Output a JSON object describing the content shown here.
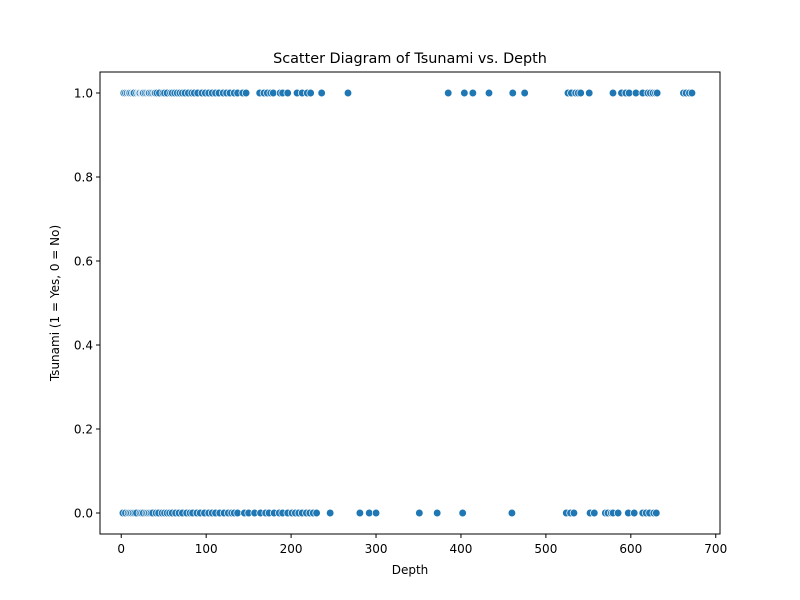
{
  "chart_data": {
    "type": "scatter",
    "title": "Scatter Diagram of Tsunami vs. Depth",
    "xlabel": "Depth",
    "ylabel": "Tsunami (1 = Yes, 0 = No)",
    "xlim": [
      -25,
      705
    ],
    "ylim": [
      -0.05,
      1.05
    ],
    "x_ticks": [
      0,
      100,
      200,
      300,
      400,
      500,
      600,
      700
    ],
    "y_ticks": [
      0.0,
      0.2,
      0.4,
      0.6,
      0.8,
      1.0
    ],
    "y_tick_labels": [
      "0.0",
      "0.2",
      "0.4",
      "0.6",
      "0.8",
      "1.0"
    ],
    "grid": false,
    "legend": "none",
    "marker_color": "#1f77b4",
    "marker_edge_color": "#ffffff",
    "series": [
      {
        "points": [
          [
            3,
            1
          ],
          [
            5,
            1
          ],
          [
            7,
            1
          ],
          [
            9,
            1
          ],
          [
            10,
            1
          ],
          [
            12,
            1
          ],
          [
            14,
            1
          ],
          [
            15,
            1
          ],
          [
            18,
            1
          ],
          [
            20,
            1
          ],
          [
            21,
            1
          ],
          [
            22,
            1
          ],
          [
            24,
            1
          ],
          [
            25,
            1
          ],
          [
            26,
            1
          ],
          [
            28,
            1
          ],
          [
            30,
            1
          ],
          [
            32,
            1
          ],
          [
            33,
            1
          ],
          [
            35,
            1
          ],
          [
            37,
            1
          ],
          [
            39,
            1
          ],
          [
            40,
            1
          ],
          [
            42,
            1
          ],
          [
            45,
            1
          ],
          [
            49,
            1
          ],
          [
            51,
            1
          ],
          [
            54,
            1
          ],
          [
            58,
            1
          ],
          [
            60,
            1
          ],
          [
            63,
            1
          ],
          [
            66,
            1
          ],
          [
            69,
            1
          ],
          [
            72,
            1
          ],
          [
            75,
            1
          ],
          [
            79,
            1
          ],
          [
            83,
            1
          ],
          [
            86,
            1
          ],
          [
            90,
            1
          ],
          [
            95,
            1
          ],
          [
            99,
            1
          ],
          [
            103,
            1
          ],
          [
            107,
            1
          ],
          [
            111,
            1
          ],
          [
            115,
            1
          ],
          [
            120,
            1
          ],
          [
            124,
            1
          ],
          [
            128,
            1
          ],
          [
            133,
            1
          ],
          [
            137,
            1
          ],
          [
            143,
            1
          ],
          [
            147,
            1
          ],
          [
            163,
            1
          ],
          [
            168,
            1
          ],
          [
            172,
            1
          ],
          [
            176,
            1
          ],
          [
            179,
            1
          ],
          [
            187,
            1
          ],
          [
            190,
            1
          ],
          [
            196,
            1
          ],
          [
            207,
            1
          ],
          [
            213,
            1
          ],
          [
            219,
            1
          ],
          [
            223,
            1
          ],
          [
            236,
            1
          ],
          [
            267,
            1
          ],
          [
            385,
            1
          ],
          [
            404,
            1
          ],
          [
            414,
            1
          ],
          [
            433,
            1
          ],
          [
            461,
            1
          ],
          [
            475,
            1
          ],
          [
            526,
            1
          ],
          [
            530,
            1
          ],
          [
            535,
            1
          ],
          [
            538,
            1
          ],
          [
            541,
            1
          ],
          [
            551,
            1
          ],
          [
            579,
            1
          ],
          [
            589,
            1
          ],
          [
            594,
            1
          ],
          [
            598,
            1
          ],
          [
            606,
            1
          ],
          [
            614,
            1
          ],
          [
            620,
            1
          ],
          [
            623,
            1
          ],
          [
            626,
            1
          ],
          [
            629,
            1
          ],
          [
            631,
            1
          ],
          [
            662,
            1
          ],
          [
            665,
            1
          ],
          [
            669,
            1
          ],
          [
            672,
            1
          ],
          [
            2,
            0
          ],
          [
            5,
            0
          ],
          [
            8,
            0
          ],
          [
            10,
            0
          ],
          [
            12,
            0
          ],
          [
            14,
            0
          ],
          [
            16,
            0
          ],
          [
            18,
            0
          ],
          [
            22,
            0
          ],
          [
            24,
            0
          ],
          [
            26,
            0
          ],
          [
            29,
            0
          ],
          [
            31,
            0
          ],
          [
            33,
            0
          ],
          [
            35,
            0
          ],
          [
            37,
            0
          ],
          [
            41,
            0
          ],
          [
            44,
            0
          ],
          [
            48,
            0
          ],
          [
            51,
            0
          ],
          [
            54,
            0
          ],
          [
            57,
            0
          ],
          [
            60,
            0
          ],
          [
            64,
            0
          ],
          [
            68,
            0
          ],
          [
            72,
            0
          ],
          [
            77,
            0
          ],
          [
            81,
            0
          ],
          [
            84,
            0
          ],
          [
            89,
            0
          ],
          [
            93,
            0
          ],
          [
            98,
            0
          ],
          [
            103,
            0
          ],
          [
            107,
            0
          ],
          [
            111,
            0
          ],
          [
            116,
            0
          ],
          [
            121,
            0
          ],
          [
            126,
            0
          ],
          [
            130,
            0
          ],
          [
            133,
            0
          ],
          [
            137,
            0
          ],
          [
            145,
            0
          ],
          [
            150,
            0
          ],
          [
            157,
            0
          ],
          [
            164,
            0
          ],
          [
            170,
            0
          ],
          [
            174,
            0
          ],
          [
            180,
            0
          ],
          [
            186,
            0
          ],
          [
            190,
            0
          ],
          [
            196,
            0
          ],
          [
            201,
            0
          ],
          [
            205,
            0
          ],
          [
            209,
            0
          ],
          [
            213,
            0
          ],
          [
            218,
            0
          ],
          [
            222,
            0
          ],
          [
            226,
            0
          ],
          [
            230,
            0
          ],
          [
            246,
            0
          ],
          [
            281,
            0
          ],
          [
            292,
            0
          ],
          [
            300,
            0
          ],
          [
            351,
            0
          ],
          [
            372,
            0
          ],
          [
            402,
            0
          ],
          [
            460,
            0
          ],
          [
            524,
            0
          ],
          [
            529,
            0
          ],
          [
            533,
            0
          ],
          [
            552,
            0
          ],
          [
            557,
            0
          ],
          [
            570,
            0
          ],
          [
            573,
            0
          ],
          [
            577,
            0
          ],
          [
            579,
            0
          ],
          [
            585,
            0
          ],
          [
            597,
            0
          ],
          [
            604,
            0
          ],
          [
            614,
            0
          ],
          [
            618,
            0
          ],
          [
            622,
            0
          ],
          [
            627,
            0
          ],
          [
            630,
            0
          ]
        ]
      }
    ]
  }
}
